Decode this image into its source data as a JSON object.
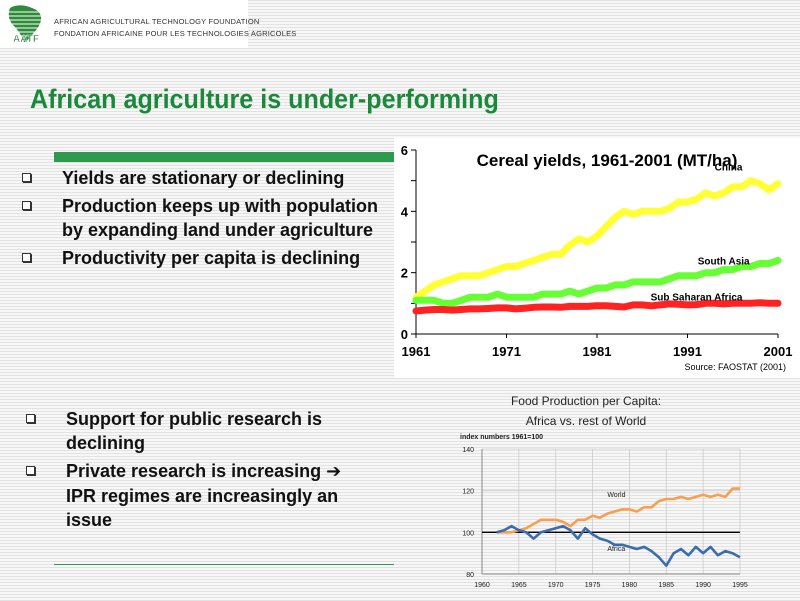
{
  "logo": {
    "mark_text": "AATF",
    "line1": "AFRICAN AGRICULTURAL TECHNOLOGY FOUNDATION",
    "line2": "FONDATION AFRICAINE POUR LES TECHNOLOGIES AGRICOLES"
  },
  "slide": {
    "title": "African agriculture is under-performing",
    "bullets_top": [
      "Yields are stationary or declining",
      "Production keeps up with population by expanding land under agriculture",
      "Productivity per capita is declining"
    ],
    "bullets_bottom": [
      {
        "text": "Support for public research is declining",
        "arrow": ""
      },
      {
        "text": "Private research is increasing",
        "arrow": "➔",
        "text_after": "IPR regimes are increasingly an issue"
      }
    ]
  },
  "chart_data": [
    {
      "type": "line",
      "title": "Cereal yields, 1961-2001 (MT/ha)",
      "source": "Source:  FAOSTAT (2001)",
      "xlim": [
        1961,
        2001
      ],
      "ylim": [
        0,
        6
      ],
      "x_ticks": [
        1961,
        1971,
        1981,
        1991,
        2001
      ],
      "y_ticks": [
        0,
        2,
        4,
        6
      ],
      "x": [
        1961,
        1962,
        1963,
        1964,
        1965,
        1966,
        1967,
        1968,
        1969,
        1970,
        1971,
        1972,
        1973,
        1974,
        1975,
        1976,
        1977,
        1978,
        1979,
        1980,
        1981,
        1982,
        1983,
        1984,
        1985,
        1986,
        1987,
        1988,
        1989,
        1990,
        1991,
        1992,
        1993,
        1994,
        1995,
        1996,
        1997,
        1998,
        1999,
        2000,
        2001
      ],
      "series": [
        {
          "name": "China",
          "color": "#ffff33",
          "values": [
            1.2,
            1.4,
            1.6,
            1.7,
            1.8,
            1.9,
            1.9,
            1.9,
            2.0,
            2.1,
            2.2,
            2.2,
            2.3,
            2.4,
            2.5,
            2.6,
            2.6,
            2.9,
            3.1,
            3.0,
            3.2,
            3.5,
            3.8,
            4.0,
            3.9,
            4.0,
            4.0,
            4.0,
            4.1,
            4.3,
            4.3,
            4.4,
            4.6,
            4.5,
            4.6,
            4.8,
            4.8,
            5.0,
            4.9,
            4.7,
            4.9
          ]
        },
        {
          "name": "South Asia",
          "color": "#66ff33",
          "values": [
            1.1,
            1.1,
            1.1,
            1.0,
            1.0,
            1.1,
            1.2,
            1.2,
            1.2,
            1.3,
            1.2,
            1.2,
            1.2,
            1.2,
            1.3,
            1.3,
            1.3,
            1.4,
            1.3,
            1.4,
            1.5,
            1.5,
            1.6,
            1.6,
            1.7,
            1.7,
            1.7,
            1.7,
            1.8,
            1.9,
            1.9,
            1.9,
            2.0,
            2.0,
            2.1,
            2.1,
            2.2,
            2.2,
            2.3,
            2.3,
            2.4
          ]
        },
        {
          "name": "Sub Saharan Africa",
          "color": "#ff2222",
          "values": [
            0.75,
            0.78,
            0.8,
            0.8,
            0.78,
            0.8,
            0.82,
            0.82,
            0.83,
            0.85,
            0.85,
            0.82,
            0.84,
            0.87,
            0.88,
            0.88,
            0.87,
            0.9,
            0.9,
            0.9,
            0.92,
            0.92,
            0.9,
            0.88,
            0.95,
            0.95,
            0.92,
            0.95,
            0.98,
            0.97,
            0.95,
            0.96,
            1.0,
            1.0,
            0.98,
            1.0,
            1.0,
            1.0,
            1.02,
            1.0,
            1.0
          ]
        }
      ]
    },
    {
      "type": "line",
      "title": "Food Production per Capita:",
      "subtitle": "Africa vs. rest of World",
      "ylabel": "index numbers  1961=100",
      "xlim": [
        1960,
        1995
      ],
      "ylim": [
        80,
        140
      ],
      "x_ticks": [
        1960,
        1965,
        1970,
        1975,
        1980,
        1985,
        1990,
        1995
      ],
      "y_ticks": [
        80,
        100,
        120,
        140
      ],
      "reference_line": 100,
      "x": [
        1962,
        1963,
        1964,
        1965,
        1966,
        1967,
        1968,
        1969,
        1970,
        1971,
        1972,
        1973,
        1974,
        1975,
        1976,
        1977,
        1978,
        1979,
        1980,
        1981,
        1982,
        1983,
        1984,
        1985,
        1986,
        1987,
        1988,
        1989,
        1990,
        1991,
        1992,
        1993,
        1994,
        1995
      ],
      "series": [
        {
          "name": "World",
          "color": "#f5a050",
          "values": [
            100,
            100,
            100,
            101,
            102,
            104,
            106,
            106,
            106,
            105,
            103,
            106,
            106,
            108,
            107,
            109,
            110,
            111,
            111,
            110,
            112,
            112,
            115,
            116,
            116,
            117,
            116,
            117,
            118,
            117,
            118,
            117,
            121,
            121
          ]
        },
        {
          "name": "Africa",
          "color": "#3a6db0",
          "values": [
            100,
            101,
            103,
            101,
            100,
            97,
            100,
            101,
            102,
            103,
            101,
            97,
            102,
            99,
            97,
            96,
            94,
            94,
            93,
            92,
            93,
            91,
            88,
            84,
            90,
            92,
            89,
            93,
            90,
            93,
            89,
            91,
            90,
            88
          ]
        }
      ]
    }
  ]
}
